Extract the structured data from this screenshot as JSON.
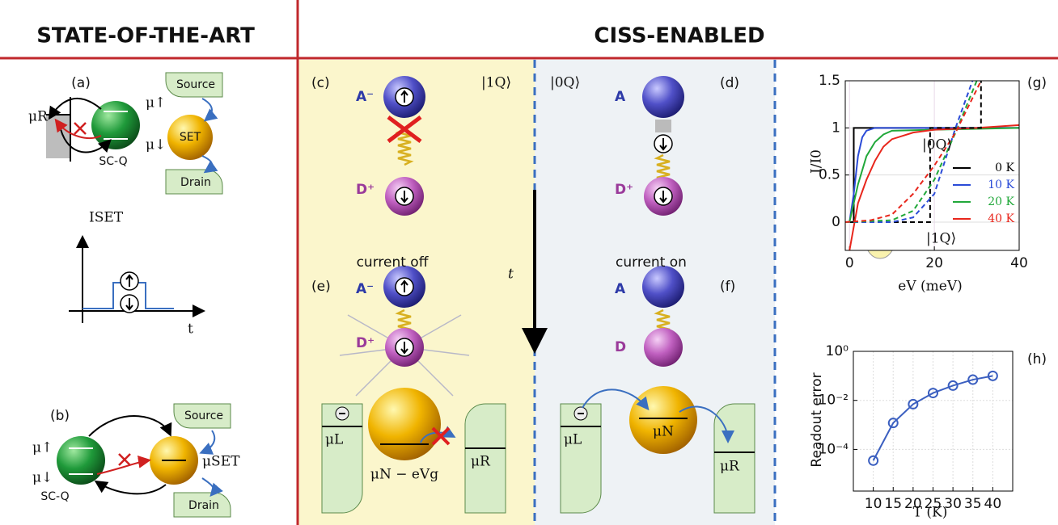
{
  "header": {
    "left": "STATE-OF-THE-ART",
    "right": "CISS-ENABLED"
  },
  "panel_a": {
    "label": "(a)",
    "mu_r": "μR",
    "mu_up": "μ↑",
    "mu_down": "μ↓",
    "qubit": "SC-Q",
    "set": "SET",
    "source": "Source",
    "drain": "Drain"
  },
  "iset_plot": {
    "ylabel": "ISET",
    "xlabel": "t"
  },
  "panel_b": {
    "label": "(b)",
    "mu_up": "μ↑",
    "mu_down": "μ↓",
    "qubit": "SC-Q",
    "mu_set": "μSET",
    "source": "Source",
    "drain": "Drain"
  },
  "panel_c": {
    "label": "(c)",
    "state": "|1Q⟩",
    "acceptor": "A⁻",
    "donor": "D⁺"
  },
  "panel_d": {
    "label": "(d)",
    "state": "|0Q⟩",
    "acceptor": "A",
    "donor": "D⁺"
  },
  "panel_e": {
    "label": "(e)",
    "caption": "current off",
    "acceptor": "A⁻",
    "donor": "D⁺",
    "mu_l": "μL",
    "mu_r": "μR",
    "mu_n": "μN − eVg"
  },
  "panel_f": {
    "label": "(f)",
    "caption": "current on",
    "acceptor": "A",
    "donor": "D",
    "mu_l": "μL",
    "mu_n": "μN",
    "mu_r": "μR"
  },
  "time_arrow": "t",
  "chart_labels": [
    "(g)",
    "(h)"
  ],
  "chart_data": [
    {
      "type": "line",
      "x_label": "eV (meV)",
      "y_label": "I/I0",
      "xlim": [
        -1,
        40
      ],
      "ylim": [
        -0.3,
        1.5
      ],
      "xticks": [
        0,
        20,
        40
      ],
      "yticks": [
        0,
        0.5,
        1,
        1.5
      ],
      "grid": true,
      "legend": "right",
      "annotations": [
        "|0Q⟩",
        "|1Q⟩"
      ],
      "series": [
        {
          "name": "0 K",
          "color": "#000000",
          "x": [
            -1,
            1,
            1,
            40
          ],
          "values": [
            0,
            0,
            1,
            1
          ]
        },
        {
          "name": "10 K",
          "color": "#2a4bd7",
          "x": [
            0,
            1,
            2,
            3,
            4,
            6,
            40
          ],
          "values": [
            0,
            0.3,
            0.7,
            0.9,
            0.97,
            1,
            1
          ]
        },
        {
          "name": "20 K",
          "color": "#21a83a",
          "x": [
            0,
            1,
            2,
            4,
            6,
            8,
            10,
            40
          ],
          "values": [
            0,
            0.2,
            0.4,
            0.7,
            0.85,
            0.93,
            0.97,
            1
          ]
        },
        {
          "name": "40 K",
          "color": "#e8261c",
          "x": [
            0,
            2,
            4,
            6,
            8,
            10,
            15,
            20,
            30,
            40
          ],
          "values": [
            -0.3,
            0.2,
            0.45,
            0.65,
            0.8,
            0.88,
            0.95,
            0.98,
            1,
            1.03
          ]
        },
        {
          "color": "#000000",
          "dash": true,
          "x": [
            -1,
            19,
            19,
            31,
            31
          ],
          "values": [
            0,
            0,
            1,
            1,
            1.5
          ]
        },
        {
          "color": "#2a4bd7",
          "dash": true,
          "x": [
            -1,
            10,
            15,
            20,
            25,
            29
          ],
          "values": [
            0,
            0,
            0.05,
            0.3,
            1,
            1.5
          ]
        },
        {
          "color": "#21a83a",
          "dash": true,
          "x": [
            -1,
            10,
            15,
            20,
            25,
            30
          ],
          "values": [
            0,
            0.02,
            0.12,
            0.45,
            0.95,
            1.5
          ]
        },
        {
          "color": "#e8261c",
          "dash": true,
          "x": [
            -1,
            5,
            10,
            15,
            20,
            25,
            31
          ],
          "values": [
            0,
            0.02,
            0.08,
            0.3,
            0.6,
            0.95,
            1.5
          ]
        }
      ]
    },
    {
      "type": "line",
      "marker": "circle",
      "x_label": "T (K)",
      "y_label": "Readout error",
      "color": "#3b5fc0",
      "x": [
        10,
        15,
        20,
        25,
        30,
        35,
        40
      ],
      "values": [
        3.5e-05,
        0.0012,
        0.007,
        0.02,
        0.04,
        0.07,
        0.1
      ],
      "xlim": [
        5,
        45
      ],
      "ylim": [
        2e-06,
        1
      ],
      "ylog": true,
      "grid": true,
      "xticks": [
        10,
        15,
        20,
        25,
        30,
        35,
        40
      ],
      "yticks": [
        {
          "value": 0.0001,
          "label": "10⁻⁴"
        },
        {
          "value": 0.01,
          "label": "10⁻²"
        },
        {
          "value": 1,
          "label": "10⁰"
        }
      ]
    }
  ]
}
